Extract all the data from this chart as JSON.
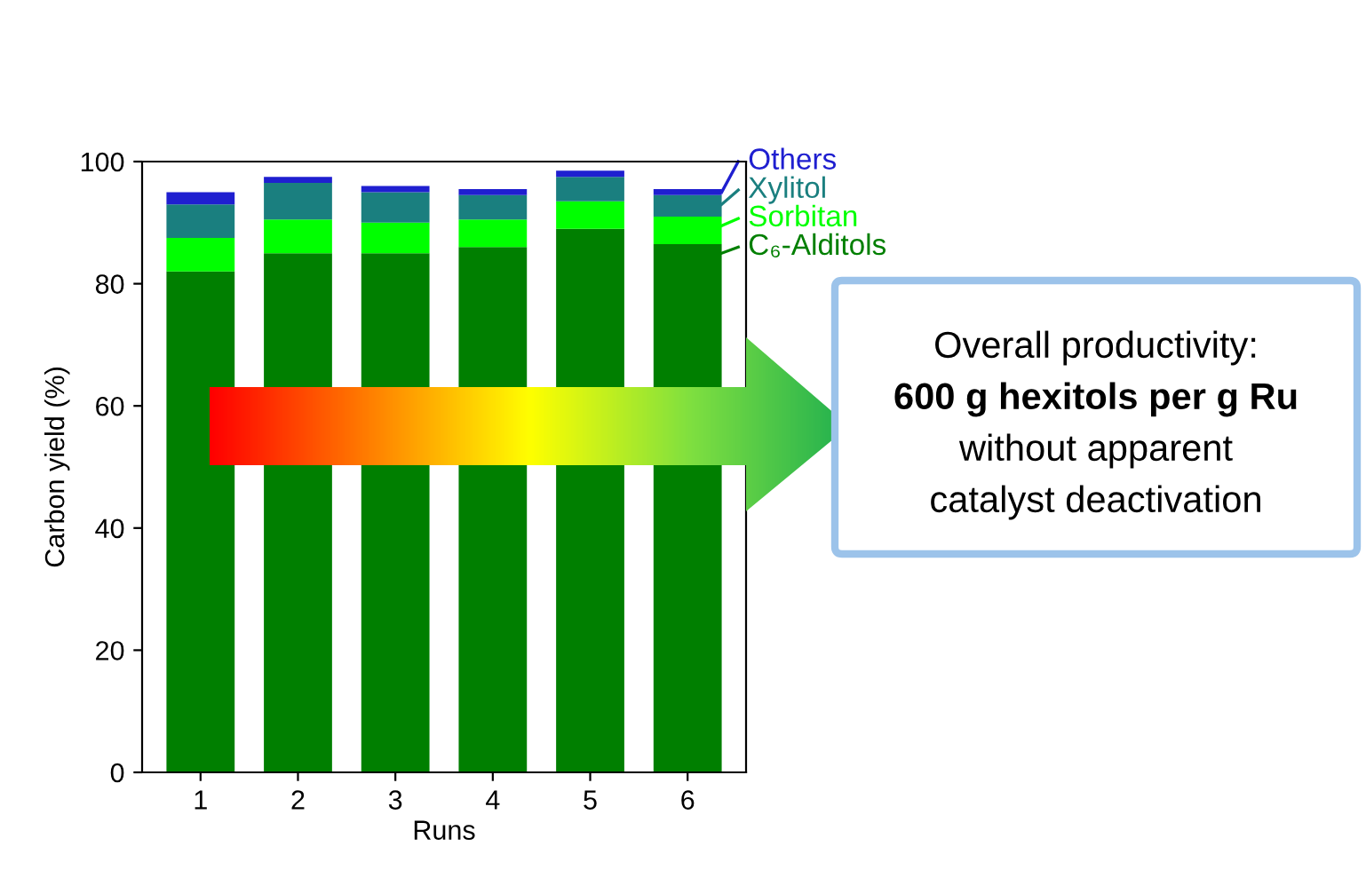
{
  "chart_data": {
    "type": "bar",
    "stacked": true,
    "xlabel": "Runs",
    "ylabel": "Carbon yield (%)",
    "categories": [
      "1",
      "2",
      "3",
      "4",
      "5",
      "6"
    ],
    "series": [
      {
        "name": "C₆-Alditols",
        "color": "#007f00",
        "values": [
          82,
          85,
          85,
          86,
          89,
          86.5
        ]
      },
      {
        "name": "Sorbitan",
        "color": "#00ff00",
        "values": [
          5.5,
          5.5,
          5,
          4.5,
          4.5,
          4.5
        ]
      },
      {
        "name": "Xylitol",
        "color": "#1a7f7f",
        "values": [
          5.5,
          6,
          5,
          4,
          4,
          3.5
        ]
      },
      {
        "name": "Others",
        "color": "#1f1fd0",
        "values": [
          2,
          1,
          1,
          1,
          1,
          1
        ]
      }
    ],
    "legend": "right",
    "ylim": [
      0,
      100
    ],
    "yticks": [
      0,
      20,
      40,
      60,
      80,
      100
    ],
    "annotations": [
      "Overall productivity:",
      "600 g hexitols per g Ru",
      "without apparent",
      "catalyst deactivation"
    ]
  }
}
